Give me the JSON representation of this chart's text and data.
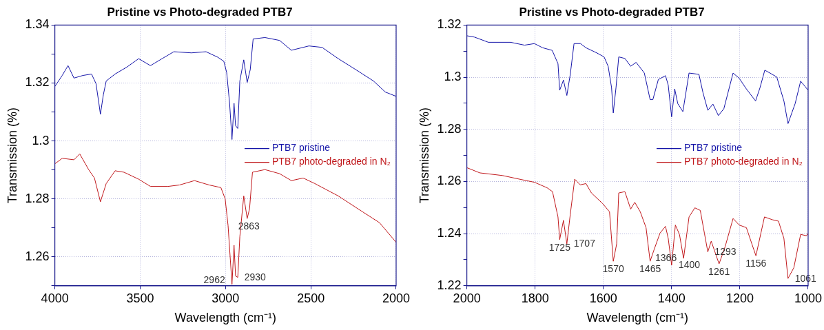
{
  "chart_data": [
    {
      "type": "line",
      "title": "Pristine vs Photo-degraded PTB7",
      "xlabel": "Wavelength (cm⁻¹)",
      "ylabel": "Transmission (%)",
      "xlim": [
        4000,
        2000
      ],
      "xticks": [
        4000,
        3500,
        3000,
        2500,
        2000
      ],
      "ylim": [
        1.25,
        1.34
      ],
      "yticks": [
        {
          "value": 1.25,
          "label": null
        },
        1.26,
        {
          "value": 1.27,
          "label": null
        },
        1.28,
        {
          "value": 1.29,
          "label": null
        },
        1.3,
        {
          "value": 1.31,
          "label": null
        },
        1.32,
        {
          "value": 1.33,
          "label": null
        },
        1.34
      ],
      "grid": true,
      "legend": "center right",
      "series": [
        {
          "name": "PTB7 pristine",
          "color": "#1414a8",
          "x": [
            4000,
            3957,
            3923,
            3888,
            3836,
            3785,
            3759,
            3742,
            3733,
            3716,
            3699,
            3647,
            3578,
            3509,
            3440,
            3372,
            3303,
            3200,
            3114,
            3045,
            3010,
            2993,
            2976,
            2962,
            2950,
            2941,
            2928,
            2916,
            2893,
            2873,
            2855,
            2838,
            2769,
            2683,
            2614,
            2511,
            2434,
            2339,
            2236,
            2133,
            2064,
            2000
          ],
          "values": [
            1.3188,
            1.3226,
            1.326,
            1.3217,
            1.3226,
            1.3231,
            1.3198,
            1.313,
            1.3092,
            1.3159,
            1.3207,
            1.3231,
            1.3255,
            1.3284,
            1.326,
            1.3284,
            1.3308,
            1.3304,
            1.3308,
            1.3289,
            1.3275,
            1.3236,
            1.313,
            1.3005,
            1.313,
            1.3053,
            1.3043,
            1.3207,
            1.328,
            1.3202,
            1.3246,
            1.3352,
            1.3357,
            1.3347,
            1.3313,
            1.3328,
            1.3323,
            1.3284,
            1.3246,
            1.3207,
            1.3169,
            1.3154
          ]
        },
        {
          "name": "PTB7 photo-degraded in N₂",
          "color": "#c0181c",
          "x": [
            4000,
            3957,
            3888,
            3854,
            3802,
            3768,
            3733,
            3699,
            3647,
            3595,
            3509,
            3440,
            3337,
            3269,
            3182,
            3096,
            3027,
            3002,
            2985,
            2962,
            2950,
            2941,
            2928,
            2916,
            2893,
            2873,
            2859,
            2842,
            2769,
            2683,
            2614,
            2545,
            2477,
            2339,
            2201,
            2098,
            2000
          ],
          "values": [
            1.2921,
            1.294,
            1.2935,
            1.2955,
            1.2901,
            1.2872,
            1.279,
            1.2853,
            1.2897,
            1.2892,
            1.2868,
            1.2843,
            1.2843,
            1.2848,
            1.2863,
            1.2848,
            1.2839,
            1.28,
            1.2708,
            1.2505,
            1.264,
            1.2534,
            1.2529,
            1.267,
            1.281,
            1.2732,
            1.2766,
            1.2892,
            1.2901,
            1.2887,
            1.2863,
            1.2872,
            1.2853,
            1.281,
            1.2757,
            1.2718,
            1.265
          ]
        }
      ],
      "annotations": [
        {
          "text": "2863",
          "x": 2863,
          "y": 1.2732
        },
        {
          "text": "2930",
          "x": 2930,
          "y": 1.2529
        },
        {
          "text": "2962",
          "x": 2962,
          "y": 1.2505
        }
      ]
    },
    {
      "type": "line",
      "title": "Pristine vs Photo-degraded PTB7",
      "xlabel": "Wavelength (cm⁻¹)",
      "ylabel": "Transmission (%)",
      "xlim": [
        2000,
        1000
      ],
      "xticks": [
        2000,
        1800,
        1600,
        1400,
        1200,
        1000
      ],
      "ylim": [
        1.22,
        1.32
      ],
      "yticks": [
        1.22,
        {
          "value": 1.23,
          "label": null
        },
        1.24,
        {
          "value": 1.25,
          "label": null
        },
        1.26,
        {
          "value": 1.27,
          "label": null
        },
        1.28,
        {
          "value": 1.29,
          "label": null
        },
        1.3,
        {
          "value": 1.31,
          "label": null
        },
        1.32
      ],
      "grid": true,
      "legend": "center right",
      "series": [
        {
          "name": "PTB7 pristine",
          "color": "#1414a8",
          "x": [
            2000,
            1978,
            1937,
            1872,
            1831,
            1802,
            1778,
            1750,
            1733,
            1728,
            1717,
            1707,
            1697,
            1686,
            1667,
            1651,
            1619,
            1598,
            1586,
            1576,
            1571,
            1563,
            1555,
            1537,
            1520,
            1504,
            1480,
            1463,
            1455,
            1439,
            1418,
            1410,
            1400,
            1391,
            1382,
            1367,
            1349,
            1320,
            1308,
            1294,
            1279,
            1263,
            1247,
            1220,
            1202,
            1181,
            1154,
            1141,
            1127,
            1112,
            1092,
            1071,
            1059,
            1038,
            1022,
            1000
          ],
          "values": [
            1.3159,
            1.3154,
            1.3134,
            1.3134,
            1.3123,
            1.3129,
            1.3113,
            1.3103,
            1.3052,
            1.295,
            1.2989,
            1.293,
            1.3011,
            1.3129,
            1.3129,
            1.3113,
            1.3093,
            1.3078,
            1.3042,
            1.296,
            1.2863,
            1.296,
            1.3078,
            1.3072,
            1.3042,
            1.3057,
            1.3016,
            1.2914,
            1.2914,
            1.2991,
            1.3006,
            1.297,
            1.2848,
            1.2955,
            1.2899,
            1.2868,
            1.3016,
            1.3011,
            1.294,
            1.2873,
            1.2897,
            1.2853,
            1.2879,
            1.3016,
            1.2996,
            1.2955,
            1.2909,
            1.296,
            1.3027,
            1.3016,
            1.3001,
            1.2909,
            1.2822,
            1.2899,
            1.2985,
            1.295
          ]
        },
        {
          "name": "PTB7 photo-degraded in N₂",
          "color": "#c0181c",
          "x": [
            2000,
            1962,
            1896,
            1839,
            1802,
            1765,
            1749,
            1733,
            1728,
            1717,
            1707,
            1697,
            1684,
            1668,
            1651,
            1635,
            1602,
            1582,
            1571,
            1561,
            1555,
            1537,
            1520,
            1508,
            1492,
            1475,
            1463,
            1451,
            1434,
            1418,
            1410,
            1400,
            1389,
            1377,
            1365,
            1349,
            1332,
            1316,
            1304,
            1294,
            1284,
            1261,
            1243,
            1220,
            1202,
            1181,
            1153,
            1128,
            1104,
            1087,
            1071,
            1059,
            1042,
            1022,
            1005,
            1000
          ],
          "values": [
            1.2653,
            1.2633,
            1.2623,
            1.2607,
            1.2597,
            1.2576,
            1.2561,
            1.2464,
            1.2377,
            1.2451,
            1.2361,
            1.2474,
            1.2609,
            1.2587,
            1.2592,
            1.2556,
            1.2515,
            1.2484,
            1.2294,
            1.2361,
            1.2556,
            1.2561,
            1.2494,
            1.252,
            1.2484,
            1.2423,
            1.2294,
            1.234,
            1.2402,
            1.2428,
            1.2382,
            1.2279,
            1.2433,
            1.2397,
            1.2305,
            1.2464,
            1.2499,
            1.2489,
            1.2402,
            1.233,
            1.2371,
            1.2284,
            1.2351,
            1.2458,
            1.2433,
            1.2423,
            1.2315,
            1.2464,
            1.2453,
            1.2448,
            1.2382,
            1.2228,
            1.2269,
            1.2397,
            1.2392,
            1.2402
          ]
        }
      ],
      "annotations": [
        {
          "text": "1725",
          "x": 1728,
          "y": 1.2377
        },
        {
          "text": "1707",
          "x": 1707,
          "y": 1.2361
        },
        {
          "text": "1570",
          "x": 1571,
          "y": 1.2294
        },
        {
          "text": "1465",
          "x": 1463,
          "y": 1.2294
        },
        {
          "text": "1400",
          "x": 1400,
          "y": 1.2279
        },
        {
          "text": "1366",
          "x": 1365,
          "y": 1.2305
        },
        {
          "text": "1293",
          "x": 1294,
          "y": 1.233
        },
        {
          "text": "1261",
          "x": 1261,
          "y": 1.2284
        },
        {
          "text": "1156",
          "x": 1153,
          "y": 1.2315
        },
        {
          "text": "1061",
          "x": 1059,
          "y": 1.2228
        }
      ]
    }
  ]
}
